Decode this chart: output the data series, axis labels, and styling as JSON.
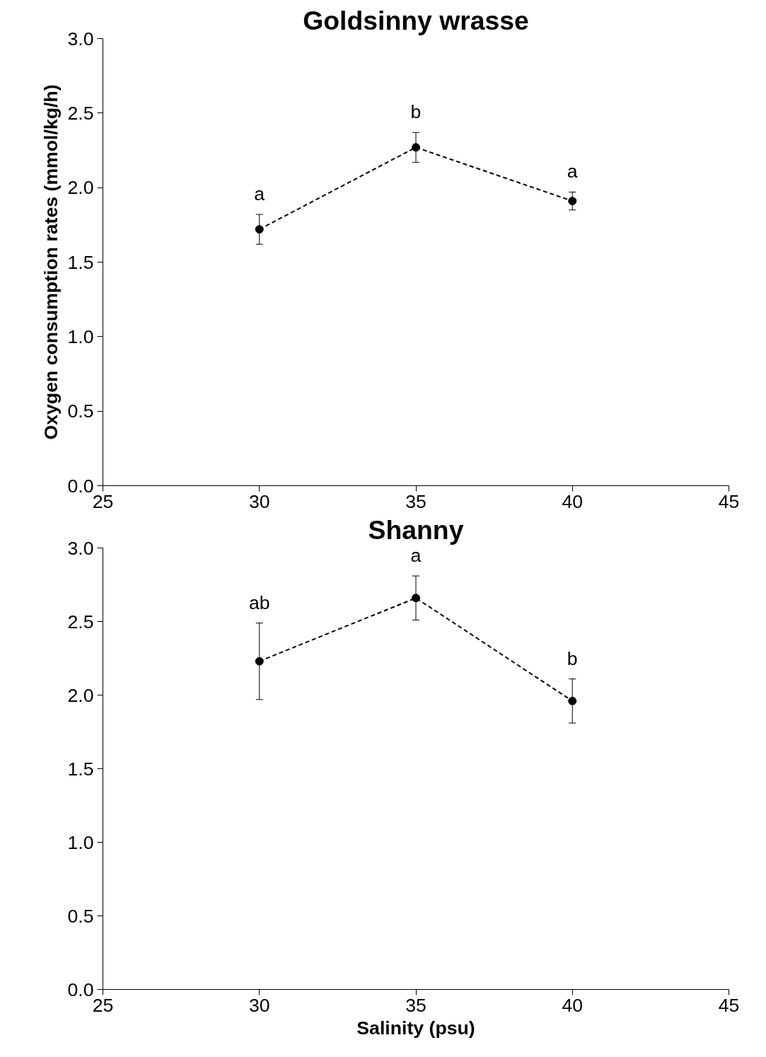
{
  "chart_data": [
    {
      "type": "line",
      "title": "Goldsinny wrasse",
      "ylabel": "Oxygen consumption rates (mmol/kg/h)",
      "x": [
        30,
        35,
        40
      ],
      "series": [
        {
          "color": "#000000",
          "values": [
            1.72,
            2.27,
            1.91
          ],
          "errors": [
            0.1,
            0.1,
            0.06
          ]
        }
      ],
      "xlim": [
        25,
        45
      ],
      "xticks": [
        25,
        30,
        35,
        40,
        45
      ],
      "ylim": [
        0,
        3
      ],
      "yticks": [
        {
          "value": 0,
          "label": "0.0"
        },
        {
          "value": 0.5,
          "label": "0.5"
        },
        {
          "value": 1,
          "label": "1.0"
        },
        {
          "value": 1.5,
          "label": "1.5"
        },
        {
          "value": 2,
          "label": "2.0"
        },
        {
          "value": 2.5,
          "label": "2.5"
        },
        {
          "value": 3,
          "label": "3.0"
        }
      ],
      "marker": "circle",
      "line_style": "dashed",
      "grid": false,
      "annotations": [
        {
          "text": "a",
          "x": 30,
          "y": 1.72
        },
        {
          "text": "b",
          "x": 35,
          "y": 2.27
        },
        {
          "text": "a",
          "x": 40,
          "y": 1.91
        }
      ]
    },
    {
      "type": "line",
      "title": "Shanny",
      "xlabel": "Salinity (psu)",
      "x": [
        30,
        35,
        40
      ],
      "series": [
        {
          "color": "#000000",
          "values": [
            2.23,
            2.66,
            1.96
          ],
          "errors": [
            0.26,
            0.15,
            0.15
          ]
        }
      ],
      "xlim": [
        25,
        45
      ],
      "xticks": [
        25,
        30,
        35,
        40,
        45
      ],
      "ylim": [
        0,
        3
      ],
      "yticks": [
        {
          "value": 0,
          "label": "0.0"
        },
        {
          "value": 0.5,
          "label": "0.5"
        },
        {
          "value": 1,
          "label": "1.0"
        },
        {
          "value": 1.5,
          "label": "1.5"
        },
        {
          "value": 2,
          "label": "2.0"
        },
        {
          "value": 2.5,
          "label": "2.5"
        },
        {
          "value": 3,
          "label": "3.0"
        }
      ],
      "marker": "circle",
      "line_style": "dashed",
      "grid": false,
      "annotations": [
        {
          "text": "ab",
          "x": 30,
          "y": 2.23
        },
        {
          "text": "a",
          "x": 35,
          "y": 2.66
        },
        {
          "text": "b",
          "x": 40,
          "y": 1.96
        }
      ]
    }
  ]
}
